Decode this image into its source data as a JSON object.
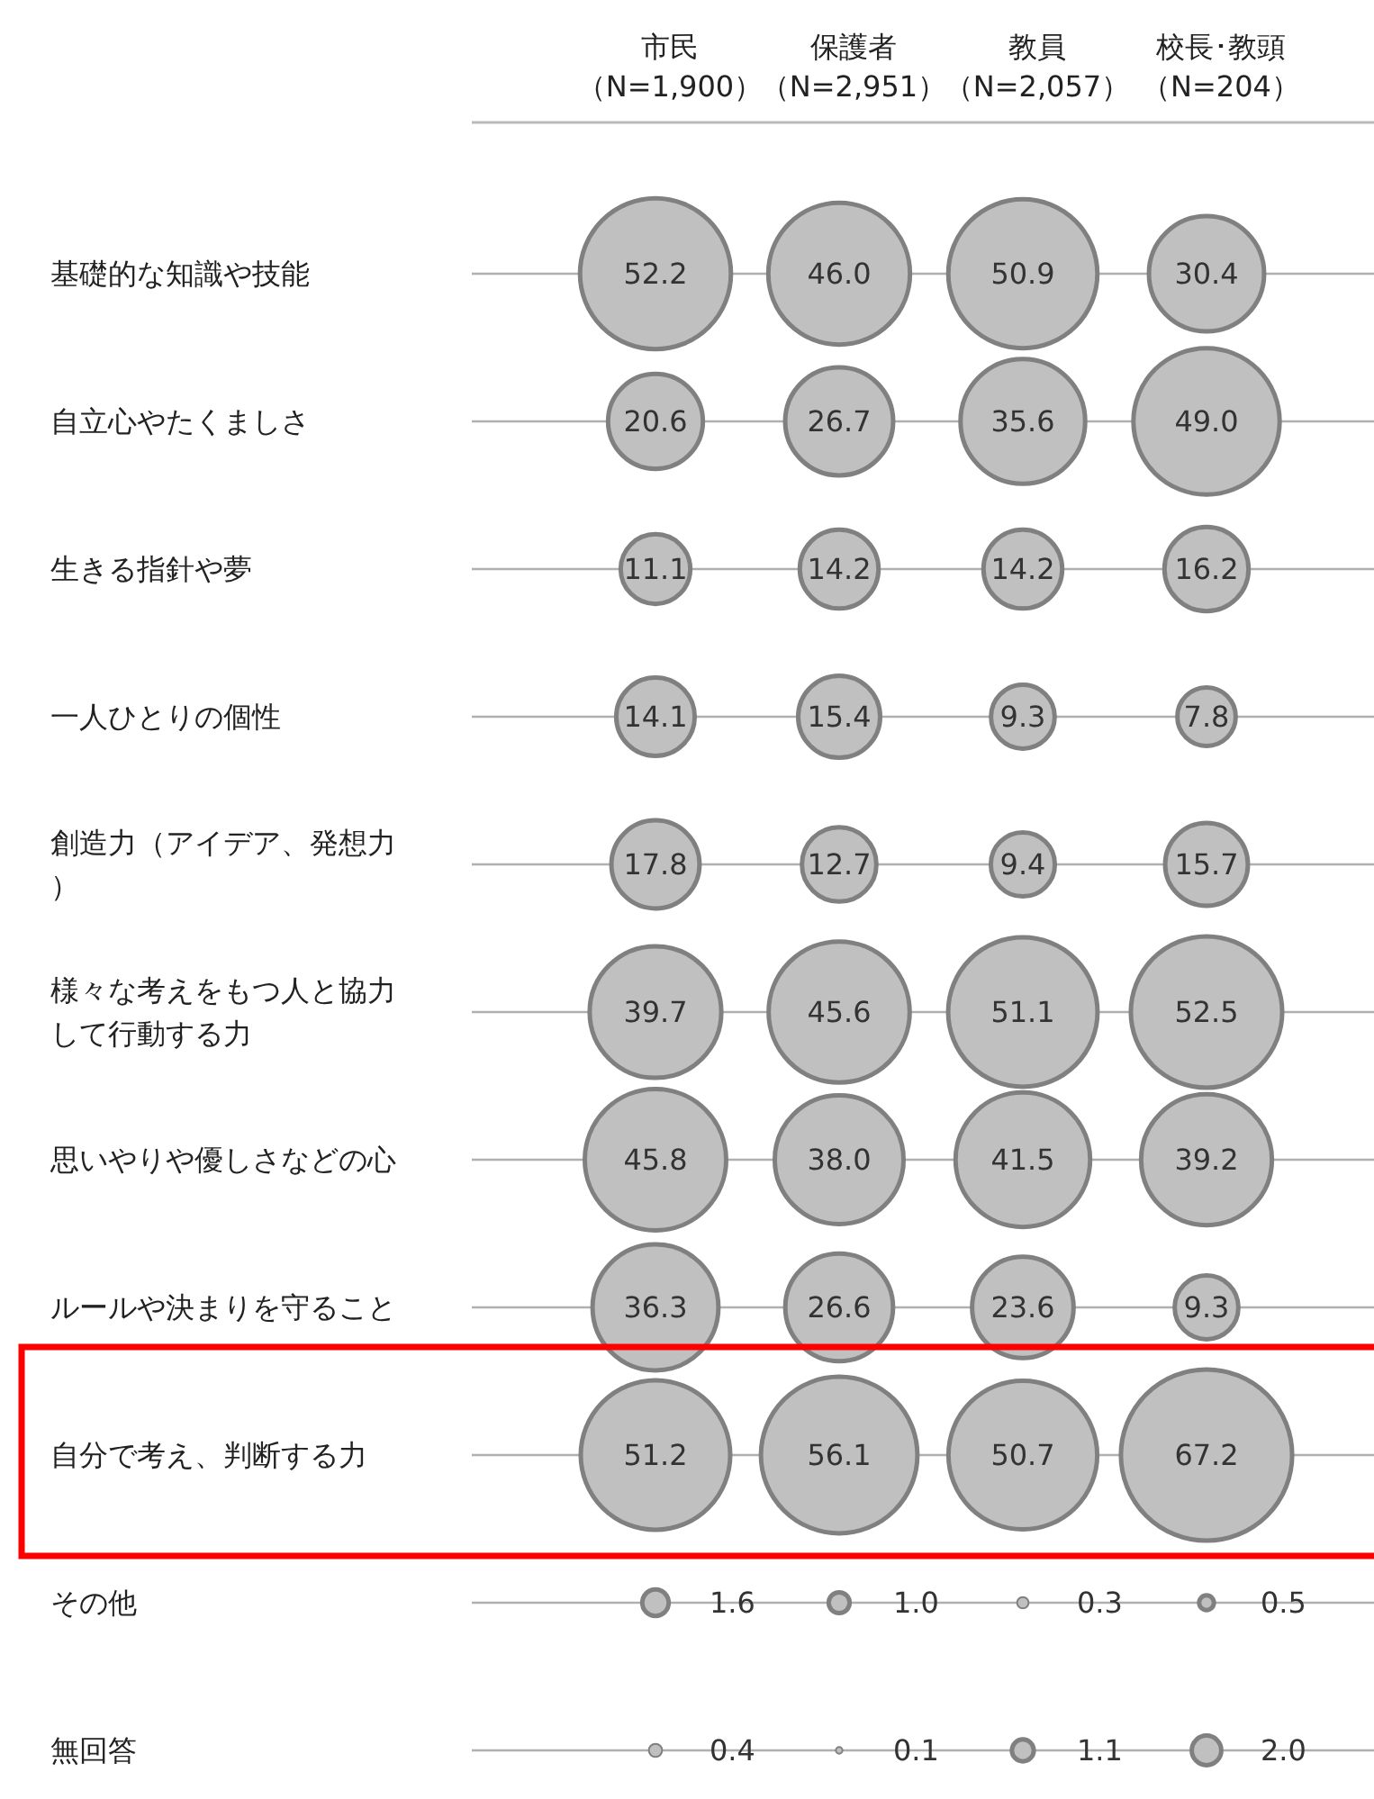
{
  "chart_data": {
    "type": "heatmap",
    "marker": "circle",
    "grid": "y",
    "categories": [
      "市民（N=1,900）",
      "保護者（N=2,951）",
      "教員（N=2,057）",
      "校長･教頭（N=204）"
    ],
    "y_categories": [
      "基礎的な知識や技能",
      "自立心やたくましさ",
      "生きる指針や夢",
      "一人ひとりの個性",
      "創造力（アイデア、発想力）",
      "様々な考えをもつ人と協力して行動する力",
      "思いやりや優しさなどの心",
      "ルールや決まりを守ること",
      "自分で考え、判断する力",
      "その他",
      "無回答"
    ],
    "cells": [
      [
        52.2,
        46.0,
        50.9,
        30.4
      ],
      [
        20.6,
        26.7,
        35.6,
        49.0
      ],
      [
        11.1,
        14.2,
        14.2,
        16.2
      ],
      [
        14.1,
        15.4,
        9.3,
        7.8
      ],
      [
        17.8,
        12.7,
        9.4,
        15.7
      ],
      [
        39.7,
        45.6,
        51.1,
        52.5
      ],
      [
        45.8,
        38.0,
        41.5,
        39.2
      ],
      [
        36.3,
        26.6,
        23.6,
        9.3
      ],
      [
        51.2,
        56.1,
        50.7,
        67.2
      ],
      [
        1.6,
        1.0,
        0.3,
        0.5
      ],
      [
        0.4,
        0.1,
        1.1,
        2.0
      ]
    ],
    "cell_labels": [
      [
        "52.2",
        "46.0",
        "50.9",
        "30.4"
      ],
      [
        "20.6",
        "26.7",
        "35.6",
        "49.0"
      ],
      [
        "11.1",
        "14.2",
        "14.2",
        "16.2"
      ],
      [
        "14.1",
        "15.4",
        "9.3",
        "7.8"
      ],
      [
        "17.8",
        "12.7",
        "9.4",
        "15.7"
      ],
      [
        "39.7",
        "45.6",
        "51.1",
        "52.5"
      ],
      [
        "45.8",
        "38.0",
        "41.5",
        "39.2"
      ],
      [
        "36.3",
        "26.6",
        "23.6",
        "9.3"
      ],
      [
        "51.2",
        "56.1",
        "50.7",
        "67.2"
      ],
      [
        "1.6",
        "1.0",
        "0.3",
        "0.5"
      ],
      [
        "0.4",
        "0.1",
        "1.1",
        "2.0"
      ]
    ],
    "colors": [
      "#c0c0c0",
      "#808080"
    ]
  }
}
